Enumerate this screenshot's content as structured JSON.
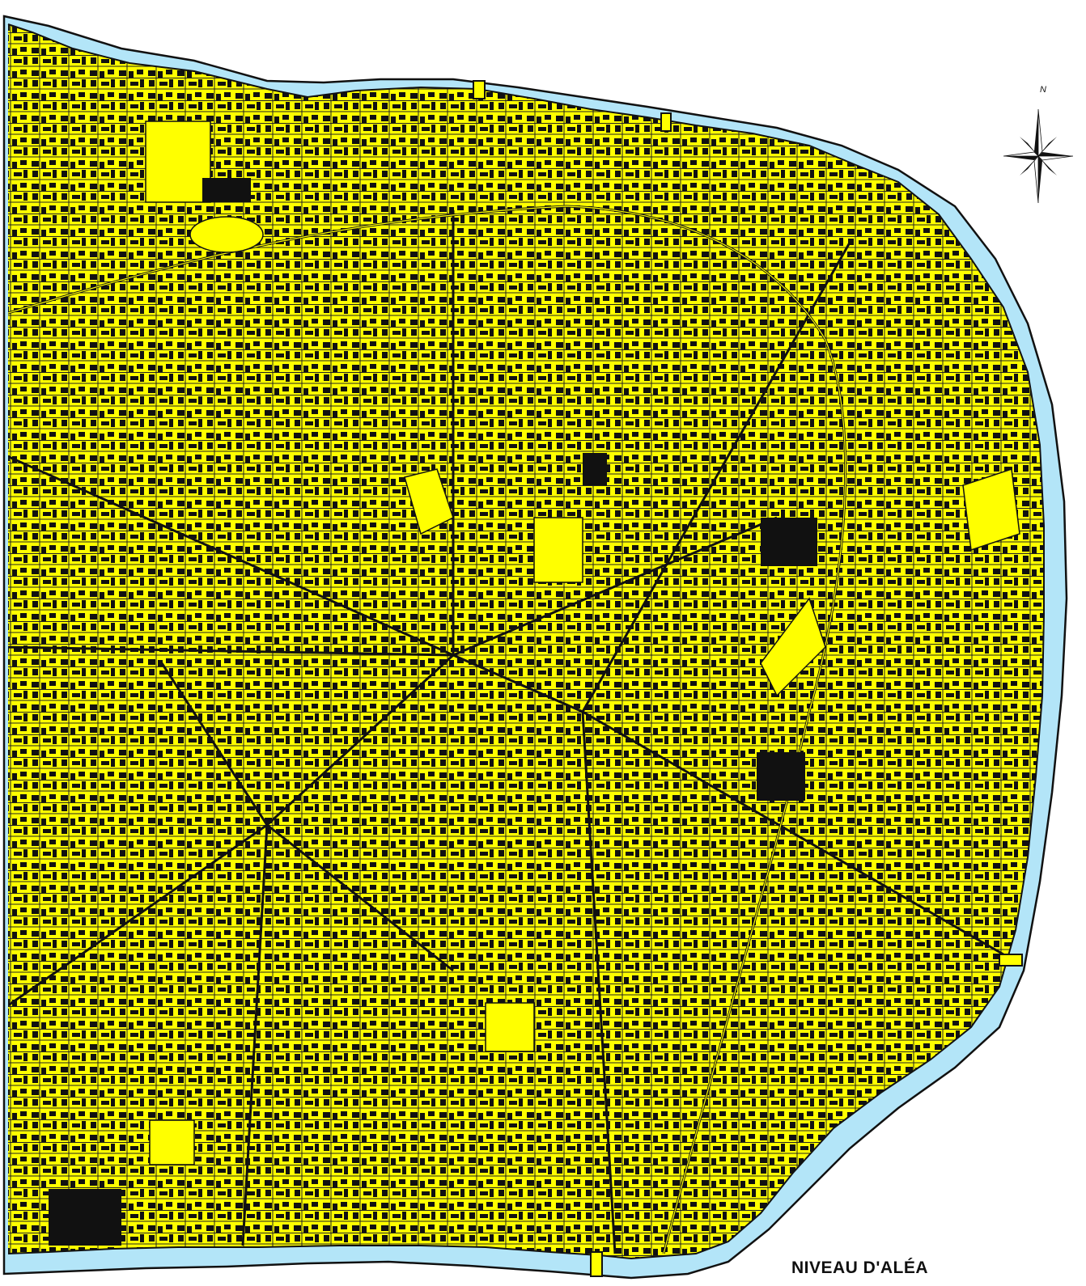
{
  "map": {
    "legend_title": "NIVEAU D'ALÉA",
    "north_label": "N",
    "colors": {
      "river": "#b3e5f8",
      "hazard_zone": "#ffff00",
      "buildings": "#111111",
      "streets": "#111111",
      "background": "#ffffff"
    },
    "icons": [
      "compass-rose-icon"
    ]
  }
}
